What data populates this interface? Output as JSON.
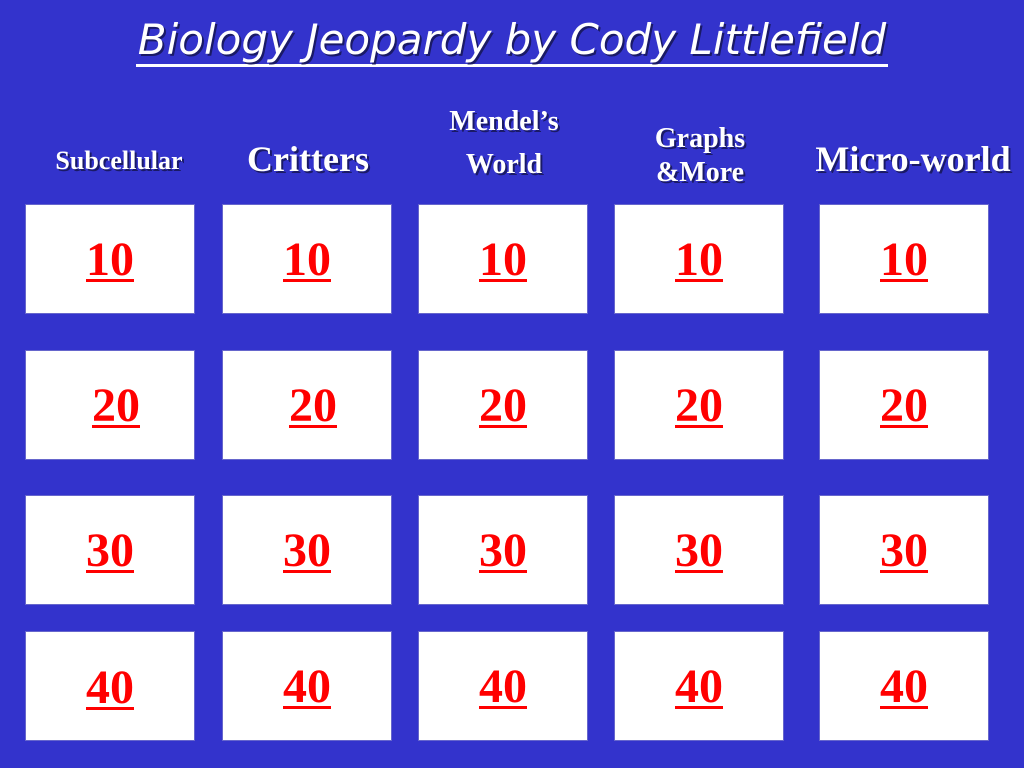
{
  "slide": {
    "title": "Biology Jeopardy by Cody Littlefield",
    "colors": {
      "background": "#3333cc",
      "cell": "#ffffff",
      "value": "#ff0000",
      "text": "#ffffff"
    }
  },
  "categories": [
    {
      "label": "Subcellular"
    },
    {
      "label": "Critters"
    },
    {
      "line1": "Mendel’s",
      "line2": "World"
    },
    {
      "line1": "Graphs",
      "line2": "&More"
    },
    {
      "label": "Micro-world"
    }
  ],
  "board": [
    [
      "10",
      "10",
      "10",
      "10",
      "10"
    ],
    [
      "20",
      "20",
      "20",
      "20",
      "20"
    ],
    [
      "30",
      "30",
      "30",
      "30",
      "30"
    ],
    [
      "40",
      "40",
      "40",
      "40",
      "40"
    ]
  ]
}
